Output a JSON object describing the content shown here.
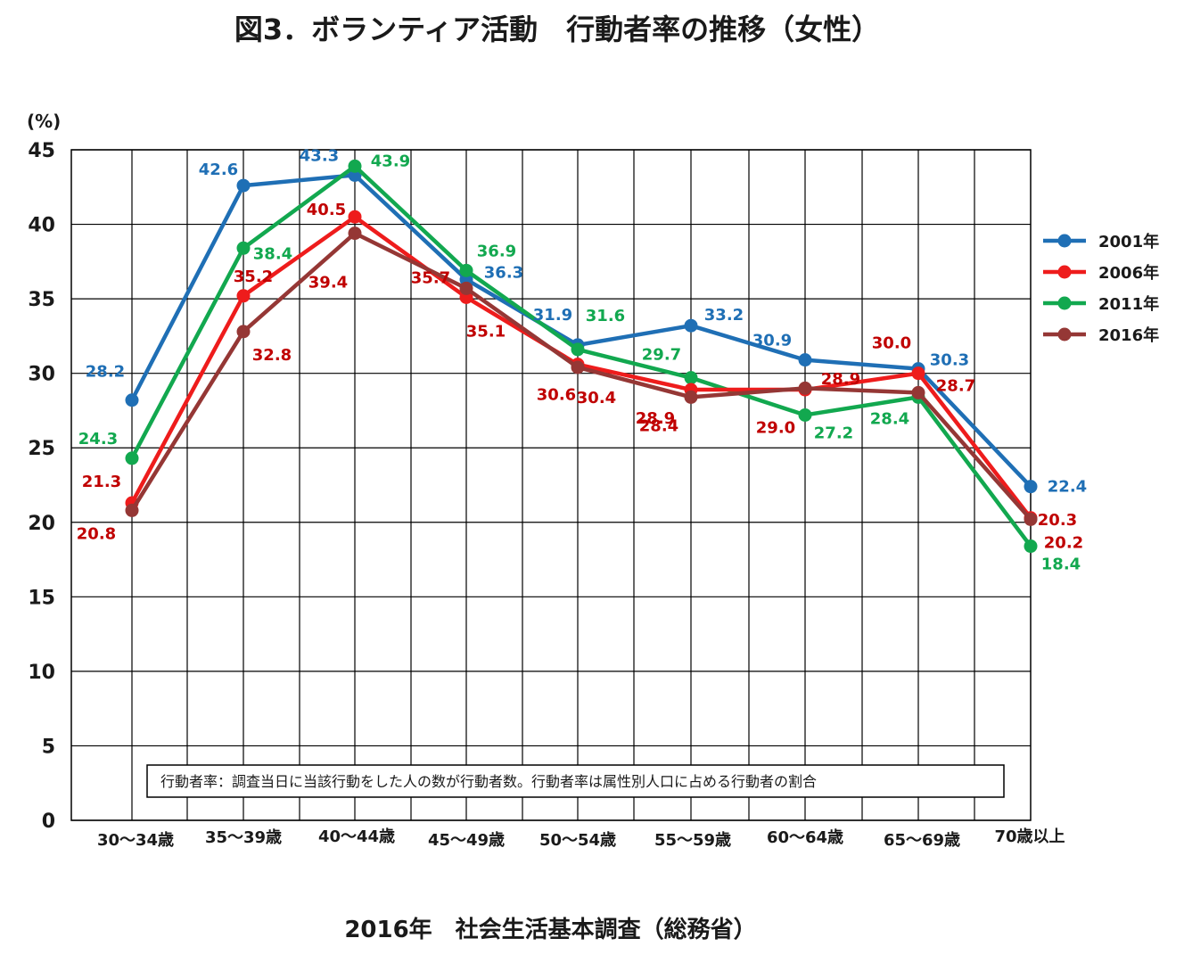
{
  "title": "図3．ボランティア活動　行動者率の推移（女性）",
  "source": "2016年　社会生活基本調査（総務省）",
  "note": "行動者率：調査当日に当該行動をした人の数が行動者数。行動者率は属性別人口に占める行動者の割合",
  "chart_data": {
    "type": "line",
    "title": "図3．ボランティア活動　行動者率の推移（女性）",
    "ylabel": "(%)",
    "xlabel": "",
    "ylim": [
      0,
      45
    ],
    "y_ticks": [
      "0",
      "5",
      "10",
      "15",
      "20",
      "25",
      "30",
      "35",
      "40",
      "45"
    ],
    "categories": [
      "30～34歳",
      "35～39歳",
      "40～44歳",
      "45～49歳",
      "50～54歳",
      "55～59歳",
      "60～64歳",
      "65～69歳",
      "70歳以上"
    ],
    "grid": true,
    "legend_position": "right",
    "series": [
      {
        "name": "2001年",
        "color": "#1f6fb5",
        "label_color": "#1f6fb5",
        "values": [
          28.2,
          42.6,
          43.3,
          36.3,
          31.9,
          33.2,
          30.9,
          30.3,
          22.4
        ]
      },
      {
        "name": "2006年",
        "color": "#ee1c1c",
        "label_color": "#c00000",
        "values": [
          21.3,
          35.2,
          40.5,
          35.1,
          30.6,
          28.9,
          28.9,
          30.0,
          20.3
        ]
      },
      {
        "name": "2011年",
        "color": "#12a84f",
        "label_color": "#12a84f",
        "values": [
          24.3,
          38.4,
          43.9,
          36.9,
          31.6,
          29.7,
          27.2,
          28.4,
          18.4
        ]
      },
      {
        "name": "2016年",
        "color": "#953735",
        "label_color": "#c00000",
        "values": [
          20.8,
          32.8,
          39.4,
          35.7,
          30.4,
          28.4,
          29.0,
          28.7,
          20.2
        ]
      }
    ]
  }
}
